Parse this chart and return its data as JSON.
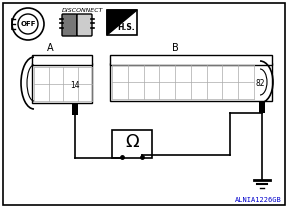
{
  "bg_color": "#ffffff",
  "border_color": "#000000",
  "label_a": "A",
  "label_b": "B",
  "pin_14": "14",
  "pin_82": "82",
  "disconnect_text": "DISCONNECT",
  "hs_text": "H.S.",
  "code": "ALNIA1226GB",
  "code_color": "#0000cc",
  "conn_a_grid_rows": 2,
  "conn_a_grid_cols": 4,
  "conn_b_grid_rows": 2,
  "conn_b_grid_cols": 9
}
